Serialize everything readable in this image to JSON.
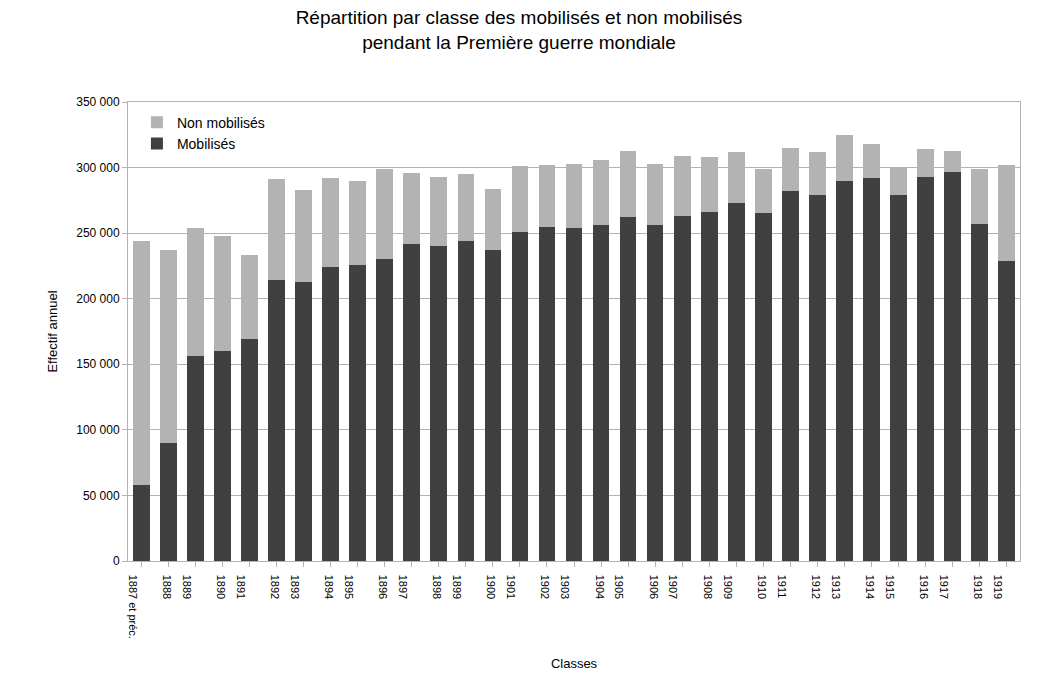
{
  "chart_data": {
    "type": "bar",
    "title": "Répartition par classe des mobilisés et non mobilisés\npendant la Première guerre mondiale",
    "x_label": "Classes",
    "y_label": "Effectif annuel",
    "categories": [
      "1887 et préc.",
      "1888",
      "1889",
      "1890",
      "1891",
      "1892",
      "1893",
      "1894",
      "1895",
      "1896",
      "1897",
      "1898",
      "1899",
      "1900",
      "1901",
      "1902",
      "1903",
      "1904",
      "1905",
      "1906",
      "1907",
      "1908",
      "1909",
      "1910",
      "1911",
      "1912",
      "1913",
      "1914",
      "1915",
      "1916",
      "1917",
      "1918",
      "1919"
    ],
    "series": [
      {
        "name": "Mobilisés",
        "color": "#404040",
        "values": [
          58000,
          90000,
          156000,
          160000,
          169000,
          214000,
          213000,
          224000,
          226000,
          230000,
          242000,
          240000,
          244000,
          237000,
          251000,
          255000,
          254000,
          256000,
          262000,
          256000,
          263000,
          266000,
          273000,
          265000,
          282000,
          279000,
          290000,
          292000,
          279000,
          293000,
          297000,
          257000,
          229000
        ]
      },
      {
        "name": "Non mobilisés",
        "color": "#b3b3b3",
        "values": [
          186000,
          147000,
          98000,
          88000,
          64000,
          77000,
          70000,
          68000,
          64000,
          69000,
          54000,
          53000,
          51000,
          47000,
          50000,
          47000,
          49000,
          50000,
          51000,
          47000,
          46000,
          42000,
          39000,
          34000,
          33000,
          33000,
          35000,
          26000,
          21000,
          21000,
          16000,
          42000,
          73000
        ]
      }
    ],
    "ylim": [
      0,
      350000
    ],
    "yticks": [
      0,
      {
        "value": 50000,
        "label": "50 000"
      },
      {
        "value": 100000,
        "label": "100 000"
      },
      {
        "value": 150000,
        "label": "150 000"
      },
      {
        "value": 200000,
        "label": "200 000"
      },
      {
        "value": 250000,
        "label": "250 000"
      },
      {
        "value": 300000,
        "label": "300 000"
      },
      {
        "value": 350000,
        "label": "350 000"
      }
    ],
    "stacked": true,
    "grid": true,
    "legend": "top-left"
  }
}
